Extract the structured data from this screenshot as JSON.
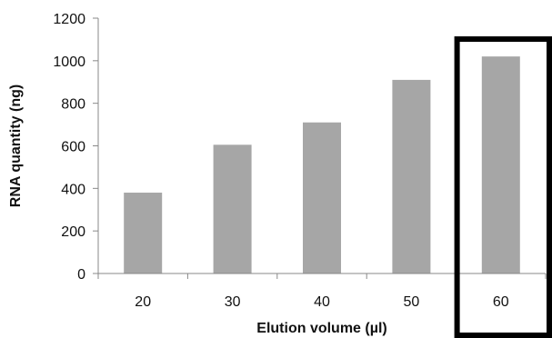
{
  "chart_data": {
    "type": "bar",
    "title": "",
    "xlabel": "Elution volume (µl)",
    "ylabel": "RNA quantity (ng)",
    "categories": [
      "20",
      "30",
      "40",
      "50",
      "60"
    ],
    "values": [
      380,
      605,
      710,
      910,
      1020
    ],
    "ylim": [
      0,
      1200
    ],
    "yticks": [
      "0",
      "200",
      "400",
      "600",
      "800",
      "1000",
      "1200"
    ],
    "grid": false,
    "legend": "none",
    "highlighted_category": "60",
    "colors": {
      "bar": "#a6a6a6",
      "axis": "#888888",
      "highlight_box": "#000000"
    }
  }
}
